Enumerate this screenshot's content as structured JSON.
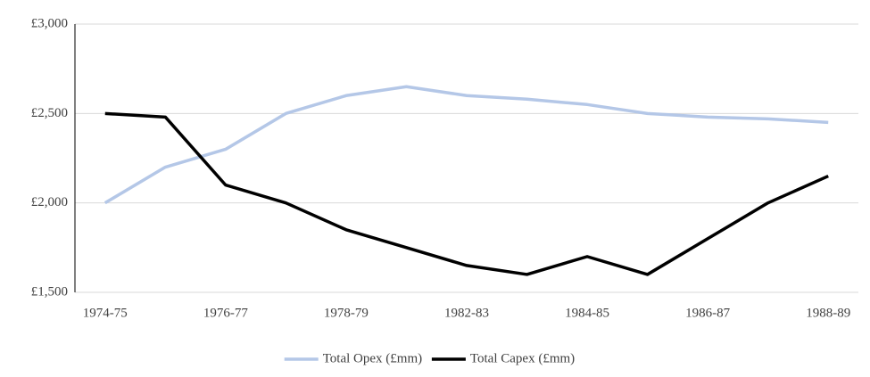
{
  "chart_data": {
    "type": "line",
    "categories": [
      "1974-75",
      null,
      "1976-77",
      null,
      "1978-79",
      null,
      "1982-83",
      null,
      "1984-85",
      null,
      "1986-87",
      null,
      "1988-89"
    ],
    "series": [
      {
        "name": "Total Opex (£mm)",
        "color": "#b4c7e7",
        "values": [
          2000,
          2200,
          2300,
          2500,
          2600,
          2650,
          2600,
          2580,
          2550,
          2500,
          2480,
          2470,
          2450
        ]
      },
      {
        "name": "Total Capex (£mm)",
        "color": "#000000",
        "values": [
          2500,
          2480,
          2100,
          2000,
          1850,
          1750,
          1650,
          1600,
          1700,
          1600,
          1800,
          2000,
          2150
        ]
      }
    ],
    "ylim": [
      1500,
      3000
    ],
    "yticks": [
      {
        "value": 1500,
        "label": "£1,500"
      },
      {
        "value": 2000,
        "label": "£2,000"
      },
      {
        "value": 2500,
        "label": "£2,500"
      },
      {
        "value": 3000,
        "label": "£3,000"
      }
    ],
    "grid": true,
    "legend": "bottom"
  }
}
